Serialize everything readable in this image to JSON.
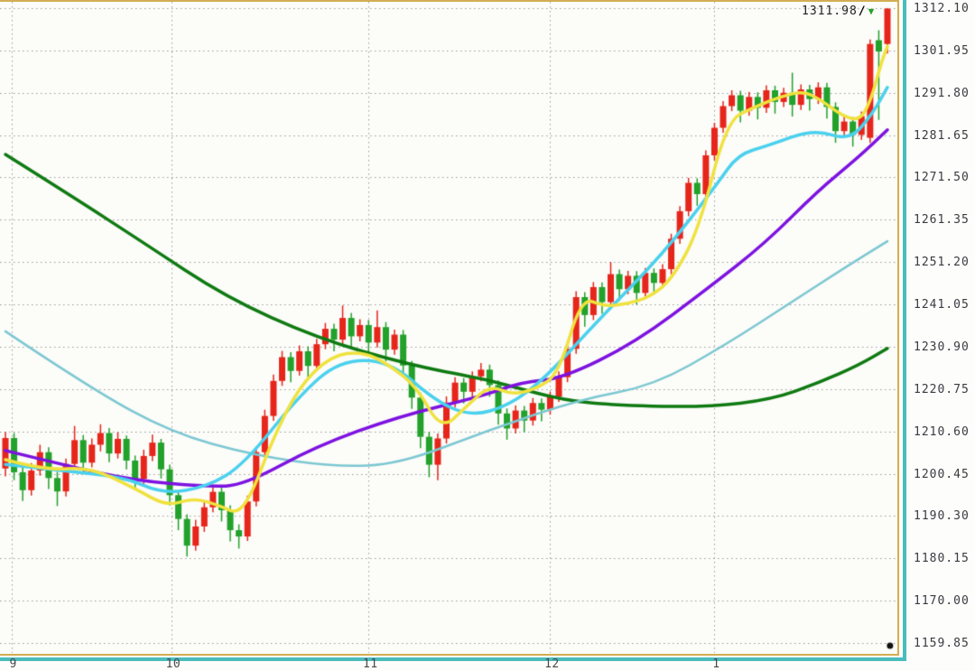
{
  "icons": {
    "down_triangle": "▼",
    "slash": "∕"
  },
  "chart_data": {
    "type": "candlestick",
    "title": "",
    "current_price": "1311.98",
    "legend_position": "none",
    "grid": true,
    "colors": {
      "up": "#e6251b",
      "down": "#22a12b",
      "grid": "#9a9a9a",
      "border_tan": "#d4ad52",
      "border_teal": "#49bcbc",
      "background": "#fcfcf9",
      "axis_text": "#3a3a42",
      "price_label_text": "#222222",
      "marker_dot": "#111111",
      "triangle": "#28a12d"
    },
    "y_axis": {
      "max": 1312.1,
      "min": 1159.85,
      "step": 10.15,
      "labels": [
        "1312.10",
        "1301.95",
        "1291.80",
        "1281.65",
        "1271.50",
        "1261.35",
        "1251.20",
        "1241.05",
        "1230.90",
        "1220.75",
        "1210.60",
        "1200.45",
        "1190.30",
        "1180.15",
        "1170.00",
        "1159.85"
      ]
    },
    "x_axis": {
      "unit": "month",
      "ticks": [
        {
          "label": "9",
          "index": 0.7
        },
        {
          "label": "10",
          "index": 19.2
        },
        {
          "label": "11",
          "index": 42.0
        },
        {
          "label": "12",
          "index": 63.0
        },
        {
          "label": "1",
          "index": 82.0
        }
      ]
    },
    "marker": {
      "index": 102.3,
      "price": 1158.9
    },
    "candles": [
      [
        1201.7,
        1210.5,
        1199.8,
        1209.0
      ],
      [
        1209.0,
        1210.2,
        1198.9,
        1200.8
      ],
      [
        1200.8,
        1202.5,
        1193.9,
        1196.5
      ],
      [
        1196.5,
        1203.0,
        1195.2,
        1201.2
      ],
      [
        1201.2,
        1207.4,
        1200.0,
        1205.6
      ],
      [
        1205.6,
        1206.8,
        1196.8,
        1199.4
      ],
      [
        1199.4,
        1200.9,
        1192.7,
        1196.2
      ],
      [
        1196.2,
        1204.1,
        1195.0,
        1202.8
      ],
      [
        1202.8,
        1211.9,
        1201.6,
        1208.5
      ],
      [
        1208.5,
        1209.7,
        1200.8,
        1203.1
      ],
      [
        1203.1,
        1208.9,
        1202.0,
        1207.4
      ],
      [
        1207.4,
        1212.3,
        1205.8,
        1210.2
      ],
      [
        1210.2,
        1211.4,
        1203.2,
        1205.3
      ],
      [
        1205.3,
        1210.4,
        1204.1,
        1208.8
      ],
      [
        1208.8,
        1209.6,
        1201.5,
        1203.6
      ],
      [
        1203.6,
        1204.8,
        1196.7,
        1199.2
      ],
      [
        1199.2,
        1206.2,
        1198.0,
        1204.7
      ],
      [
        1204.7,
        1209.8,
        1203.5,
        1207.9
      ],
      [
        1207.9,
        1208.8,
        1199.3,
        1201.5
      ],
      [
        1201.5,
        1202.6,
        1192.8,
        1195.3
      ],
      [
        1195.3,
        1196.4,
        1186.9,
        1189.6
      ],
      [
        1189.6,
        1190.7,
        1180.6,
        1183.2
      ],
      [
        1183.2,
        1189.4,
        1182.0,
        1187.8
      ],
      [
        1187.8,
        1194.0,
        1186.5,
        1192.4
      ],
      [
        1192.4,
        1197.6,
        1191.2,
        1196.1
      ],
      [
        1196.1,
        1197.2,
        1189.0,
        1191.7
      ],
      [
        1191.7,
        1192.9,
        1184.2,
        1186.9
      ],
      [
        1186.9,
        1188.3,
        1182.5,
        1185.4
      ],
      [
        1185.4,
        1195.2,
        1184.3,
        1193.8
      ],
      [
        1193.8,
        1207.0,
        1192.6,
        1205.6
      ],
      [
        1205.6,
        1215.8,
        1204.4,
        1214.3
      ],
      [
        1214.3,
        1224.2,
        1213.1,
        1222.7
      ],
      [
        1222.7,
        1229.9,
        1221.5,
        1228.4
      ],
      [
        1228.4,
        1229.6,
        1222.4,
        1225.1
      ],
      [
        1225.1,
        1231.2,
        1224.0,
        1229.8
      ],
      [
        1229.8,
        1231.0,
        1223.6,
        1226.3
      ],
      [
        1226.3,
        1232.8,
        1225.1,
        1231.5
      ],
      [
        1231.5,
        1236.6,
        1230.3,
        1235.2
      ],
      [
        1235.2,
        1236.4,
        1229.8,
        1232.6
      ],
      [
        1232.6,
        1240.8,
        1231.4,
        1237.8
      ],
      [
        1237.8,
        1239.0,
        1230.6,
        1233.4
      ],
      [
        1233.4,
        1237.5,
        1232.2,
        1236.1
      ],
      [
        1236.1,
        1237.3,
        1229.2,
        1231.9
      ],
      [
        1231.9,
        1239.6,
        1230.7,
        1235.6
      ],
      [
        1235.6,
        1236.8,
        1227.4,
        1230.2
      ],
      [
        1230.2,
        1235.0,
        1229.0,
        1233.8
      ],
      [
        1233.8,
        1234.9,
        1223.6,
        1226.4
      ],
      [
        1226.4,
        1227.5,
        1216.0,
        1218.7
      ],
      [
        1218.7,
        1219.9,
        1206.6,
        1209.3
      ],
      [
        1209.3,
        1210.5,
        1199.6,
        1202.6
      ],
      [
        1202.6,
        1210.1,
        1198.9,
        1208.9
      ],
      [
        1208.9,
        1219.0,
        1207.7,
        1217.5
      ],
      [
        1217.5,
        1223.6,
        1216.3,
        1222.3
      ],
      [
        1222.3,
        1223.4,
        1217.3,
        1220.1
      ],
      [
        1220.1,
        1225.0,
        1218.9,
        1223.8
      ],
      [
        1223.8,
        1227.0,
        1222.6,
        1225.4
      ],
      [
        1225.4,
        1226.6,
        1218.9,
        1221.7
      ],
      [
        1221.7,
        1222.8,
        1212.2,
        1214.9
      ],
      [
        1214.9,
        1216.1,
        1208.6,
        1211.3
      ],
      [
        1211.3,
        1216.8,
        1210.1,
        1215.6
      ],
      [
        1215.6,
        1216.7,
        1210.4,
        1213.2
      ],
      [
        1213.2,
        1218.6,
        1212.0,
        1217.4
      ],
      [
        1217.4,
        1218.5,
        1213.0,
        1215.8
      ],
      [
        1215.8,
        1220.1,
        1214.6,
        1218.9
      ],
      [
        1218.9,
        1225.0,
        1217.7,
        1223.6
      ],
      [
        1223.6,
        1231.6,
        1222.4,
        1230.4
      ],
      [
        1230.4,
        1244.2,
        1229.2,
        1242.8
      ],
      [
        1242.8,
        1244.0,
        1235.7,
        1238.5
      ],
      [
        1238.5,
        1246.4,
        1237.3,
        1245.2
      ],
      [
        1245.2,
        1246.3,
        1238.8,
        1241.6
      ],
      [
        1241.6,
        1251.2,
        1240.4,
        1248.3
      ],
      [
        1248.3,
        1249.4,
        1241.9,
        1244.7
      ],
      [
        1244.7,
        1249.1,
        1243.5,
        1247.9
      ],
      [
        1247.9,
        1249.0,
        1241.0,
        1243.8
      ],
      [
        1243.8,
        1249.8,
        1242.6,
        1248.6
      ],
      [
        1248.6,
        1249.7,
        1243.4,
        1246.2
      ],
      [
        1246.2,
        1250.7,
        1245.0,
        1249.5
      ],
      [
        1249.5,
        1258.0,
        1248.3,
        1256.8
      ],
      [
        1256.8,
        1264.6,
        1255.6,
        1263.4
      ],
      [
        1263.4,
        1271.4,
        1262.2,
        1270.2
      ],
      [
        1270.2,
        1271.3,
        1264.7,
        1267.5
      ],
      [
        1267.5,
        1278.0,
        1266.3,
        1276.8
      ],
      [
        1276.8,
        1284.6,
        1275.6,
        1283.4
      ],
      [
        1283.4,
        1289.8,
        1282.2,
        1288.6
      ],
      [
        1288.6,
        1292.4,
        1287.4,
        1291.2
      ],
      [
        1291.2,
        1292.3,
        1284.7,
        1287.5
      ],
      [
        1287.5,
        1292.0,
        1286.3,
        1290.8
      ],
      [
        1290.8,
        1291.9,
        1285.4,
        1288.2
      ],
      [
        1288.2,
        1293.6,
        1287.0,
        1292.4
      ],
      [
        1292.4,
        1293.5,
        1286.8,
        1289.6
      ],
      [
        1289.6,
        1293.0,
        1288.4,
        1291.8
      ],
      [
        1291.8,
        1296.6,
        1286.1,
        1288.9
      ],
      [
        1288.9,
        1293.8,
        1287.7,
        1292.6
      ],
      [
        1292.6,
        1293.7,
        1287.5,
        1290.3
      ],
      [
        1290.3,
        1294.3,
        1289.1,
        1293.1
      ],
      [
        1293.1,
        1294.2,
        1285.6,
        1288.4
      ],
      [
        1288.4,
        1289.5,
        1279.8,
        1282.6
      ],
      [
        1282.6,
        1286.1,
        1281.4,
        1284.9
      ],
      [
        1284.9,
        1286.0,
        1278.9,
        1281.7
      ],
      [
        1281.7,
        1287.3,
        1280.5,
        1286.2
      ],
      [
        1281.0,
        1304.6,
        1279.8,
        1303.5
      ],
      [
        1304.4,
        1306.8,
        1285.3,
        1301.7
      ],
      [
        1303.5,
        1312.1,
        1301.2,
        1311.98
      ]
    ],
    "ma_lines": [
      {
        "name": "ma-long-darkgreen",
        "color": "#0f7a12",
        "width": 3.5,
        "points": [
          [
            0,
            1277.0
          ],
          [
            7.6,
            1267.1
          ],
          [
            16,
            1255.8
          ],
          [
            25.5,
            1242.8
          ],
          [
            36,
            1233.0
          ],
          [
            46.6,
            1226.6
          ],
          [
            55,
            1223.3
          ],
          [
            58.2,
            1221.6
          ],
          [
            64.5,
            1218.1
          ],
          [
            70.8,
            1216.8
          ],
          [
            81.3,
            1216.4
          ],
          [
            88.7,
            1218.3
          ],
          [
            94,
            1222.2
          ],
          [
            98.7,
            1226.5
          ],
          [
            102,
            1230.5
          ]
        ]
      },
      {
        "name": "ma-slow-paleteal",
        "color": "#7cc8d2",
        "width": 2.5,
        "points": [
          [
            0,
            1234.6
          ],
          [
            9.7,
            1221.1
          ],
          [
            19.2,
            1210.3
          ],
          [
            28.6,
            1204.9
          ],
          [
            38.1,
            1202.1
          ],
          [
            45.5,
            1202.7
          ],
          [
            56,
            1211.0
          ],
          [
            66.5,
            1218.3
          ],
          [
            75,
            1221.6
          ],
          [
            83.4,
            1231.5
          ],
          [
            90.7,
            1241.3
          ],
          [
            97.1,
            1249.9
          ],
          [
            102,
            1256.2
          ]
        ]
      },
      {
        "name": "ma-mid-purple",
        "color": "#7d12e0",
        "width": 3.5,
        "points": [
          [
            0,
            1206.0
          ],
          [
            7.6,
            1202.1
          ],
          [
            15,
            1198.8
          ],
          [
            23.4,
            1197.3
          ],
          [
            27.6,
            1197.7
          ],
          [
            36,
            1207.1
          ],
          [
            45.5,
            1214.2
          ],
          [
            55,
            1219.0
          ],
          [
            59.7,
            1222.4
          ],
          [
            64.5,
            1223.3
          ],
          [
            72.9,
            1232.0
          ],
          [
            81.3,
            1245.0
          ],
          [
            87.9,
            1255.8
          ],
          [
            94,
            1268.4
          ],
          [
            98.7,
            1276.4
          ],
          [
            102,
            1282.9
          ]
        ]
      },
      {
        "name": "ma-fast-cyan",
        "color": "#4ad1ee",
        "width": 3.5,
        "points": [
          [
            0,
            1202.7
          ],
          [
            6.6,
            1201.2
          ],
          [
            14,
            1199.5
          ],
          [
            18.2,
            1195.6
          ],
          [
            23.4,
            1197.3
          ],
          [
            27.6,
            1202.7
          ],
          [
            33.9,
            1219.0
          ],
          [
            38.6,
            1227.6
          ],
          [
            44.4,
            1227.6
          ],
          [
            49.7,
            1217.9
          ],
          [
            53.9,
            1214.2
          ],
          [
            58.2,
            1216.8
          ],
          [
            62.4,
            1223.3
          ],
          [
            68.6,
            1237.4
          ],
          [
            76,
            1253.0
          ],
          [
            82.3,
            1269.9
          ],
          [
            84.7,
            1277.0
          ],
          [
            88.3,
            1279.2
          ],
          [
            93.5,
            1283.1
          ],
          [
            97.6,
            1280.3
          ],
          [
            100.2,
            1286.5
          ],
          [
            102,
            1293.1
          ]
        ]
      },
      {
        "name": "ma-fastest-yellow",
        "color": "#f0e23e",
        "width": 3.5,
        "points": [
          [
            0,
            1203.8
          ],
          [
            4.7,
            1201.2
          ],
          [
            9.7,
            1202.1
          ],
          [
            15,
            1196.9
          ],
          [
            18.7,
            1192.6
          ],
          [
            21.8,
            1194.7
          ],
          [
            25,
            1192.6
          ],
          [
            26.8,
            1190.8
          ],
          [
            28.5,
            1195.6
          ],
          [
            30.8,
            1208.2
          ],
          [
            33.9,
            1221.2
          ],
          [
            37.6,
            1228.7
          ],
          [
            41.3,
            1229.8
          ],
          [
            44.4,
            1226.5
          ],
          [
            47.6,
            1221.2
          ],
          [
            50.4,
            1210.8
          ],
          [
            53.4,
            1216.8
          ],
          [
            56,
            1221.6
          ],
          [
            58.6,
            1219.4
          ],
          [
            61.3,
            1220.7
          ],
          [
            64,
            1224.4
          ],
          [
            66.6,
            1242.8
          ],
          [
            69.2,
            1240.6
          ],
          [
            71.8,
            1241.1
          ],
          [
            74.5,
            1242.8
          ],
          [
            77.1,
            1247.1
          ],
          [
            80.2,
            1259.0
          ],
          [
            83.4,
            1285.0
          ],
          [
            86.5,
            1288.3
          ],
          [
            89.7,
            1290.9
          ],
          [
            92.3,
            1292.2
          ],
          [
            94.4,
            1290.0
          ],
          [
            96.6,
            1286.5
          ],
          [
            98.7,
            1285.0
          ],
          [
            100,
            1289.4
          ],
          [
            101.3,
            1299.1
          ],
          [
            102,
            1303.0
          ]
        ]
      }
    ]
  }
}
